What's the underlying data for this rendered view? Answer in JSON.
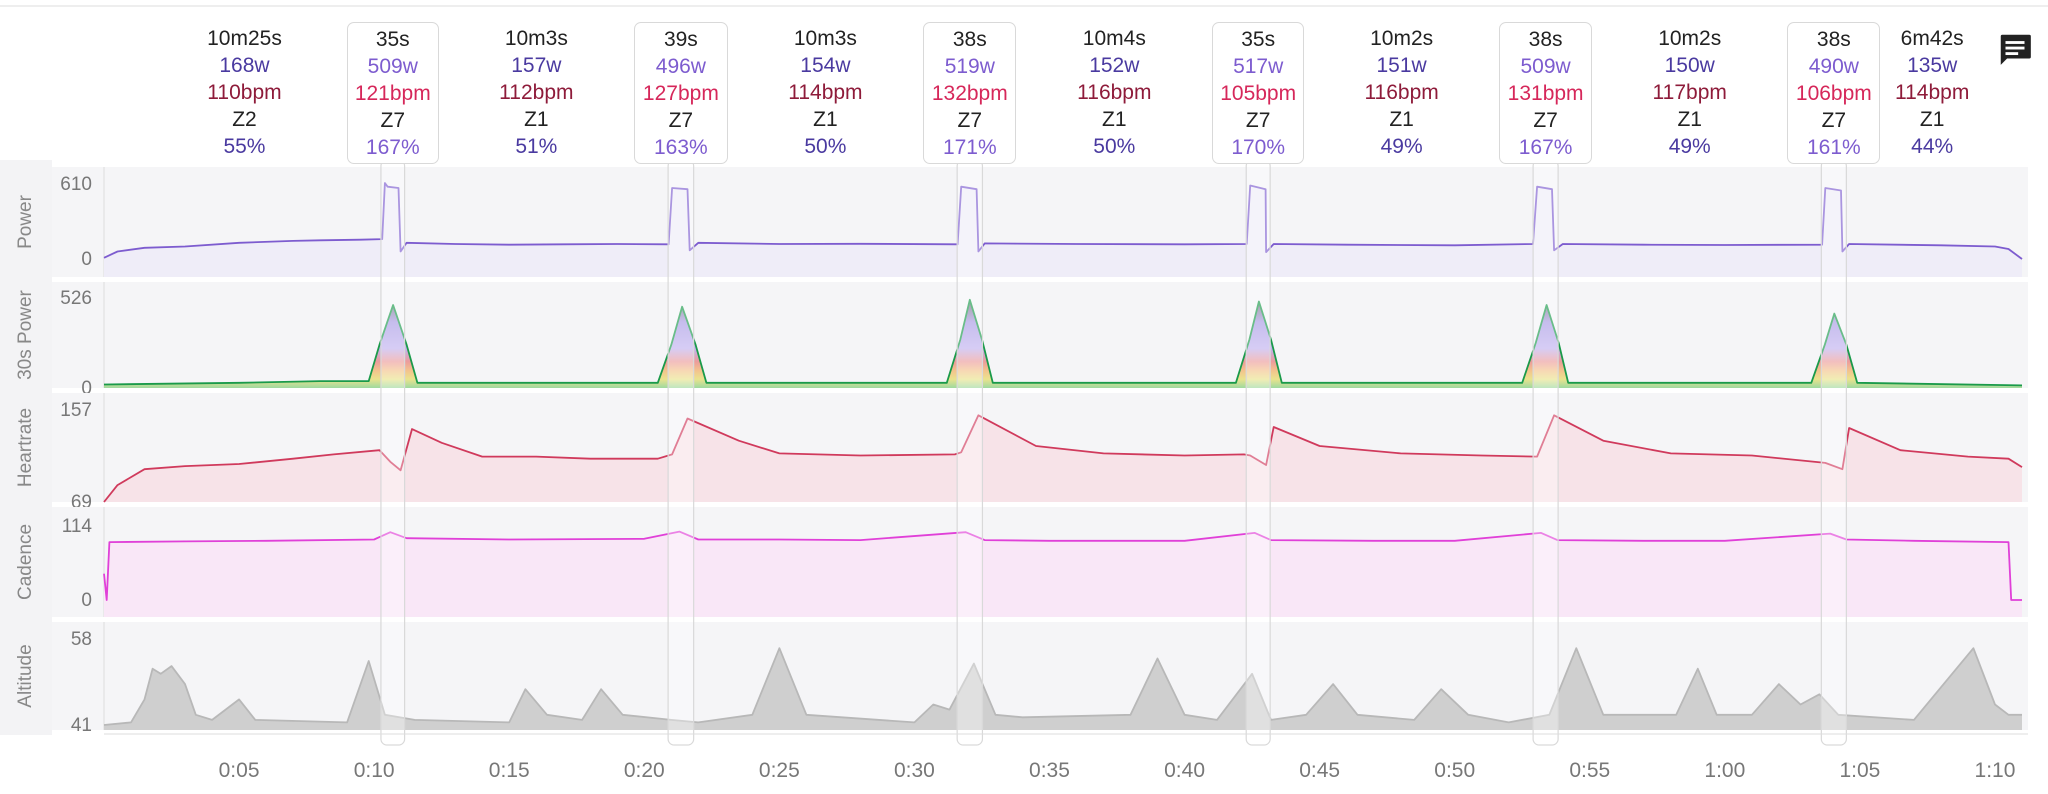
{
  "intervals": [
    {
      "duration": "10m25s",
      "power": "168w",
      "heartrate": "110bpm",
      "zone": "Z2",
      "percent": "55%",
      "work": false
    },
    {
      "duration": "35s",
      "power": "509w",
      "heartrate": "121bpm",
      "zone": "Z7",
      "percent": "167%",
      "work": true
    },
    {
      "duration": "10m3s",
      "power": "157w",
      "heartrate": "112bpm",
      "zone": "Z1",
      "percent": "51%",
      "work": false
    },
    {
      "duration": "39s",
      "power": "496w",
      "heartrate": "127bpm",
      "zone": "Z7",
      "percent": "163%",
      "work": true
    },
    {
      "duration": "10m3s",
      "power": "154w",
      "heartrate": "114bpm",
      "zone": "Z1",
      "percent": "50%",
      "work": false
    },
    {
      "duration": "38s",
      "power": "519w",
      "heartrate": "132bpm",
      "zone": "Z7",
      "percent": "171%",
      "work": true
    },
    {
      "duration": "10m4s",
      "power": "152w",
      "heartrate": "116bpm",
      "zone": "Z1",
      "percent": "50%",
      "work": false
    },
    {
      "duration": "35s",
      "power": "517w",
      "heartrate": "105bpm",
      "zone": "Z7",
      "percent": "170%",
      "work": true
    },
    {
      "duration": "10m2s",
      "power": "151w",
      "heartrate": "116bpm",
      "zone": "Z1",
      "percent": "49%",
      "work": false
    },
    {
      "duration": "38s",
      "power": "509w",
      "heartrate": "131bpm",
      "zone": "Z7",
      "percent": "167%",
      "work": true
    },
    {
      "duration": "10m2s",
      "power": "150w",
      "heartrate": "117bpm",
      "zone": "Z1",
      "percent": "49%",
      "work": false
    },
    {
      "duration": "38s",
      "power": "490w",
      "heartrate": "106bpm",
      "zone": "Z7",
      "percent": "161%",
      "work": true
    },
    {
      "duration": "6m42s",
      "power": "135w",
      "heartrate": "114bpm",
      "zone": "Z1",
      "percent": "44%",
      "work": false
    }
  ],
  "comment_icon": "comment-icon",
  "colors": {
    "power": "#7d5ccf",
    "power_30s": "#1a9a4a",
    "heartrate": "#d03a5c",
    "cadence": "#e040d8",
    "altitude": "#cfcfcf",
    "panel_bg": "#f5f5f7"
  },
  "chart_data": {
    "type": "line",
    "x": {
      "unit": "minutes",
      "range": [
        0,
        71
      ],
      "tick_labels": [
        "0:05",
        "0:10",
        "0:15",
        "0:20",
        "0:25",
        "0:30",
        "0:35",
        "0:40",
        "0:45",
        "0:50",
        "0:55",
        "1:00",
        "1:05",
        "1:10"
      ],
      "tick_values": [
        5,
        10,
        15,
        20,
        25,
        30,
        35,
        40,
        45,
        50,
        55,
        60,
        65,
        70
      ]
    },
    "work_intervals": [
      {
        "start": 10.4,
        "end": 10.98
      },
      {
        "start": 21.03,
        "end": 21.68
      },
      {
        "start": 31.73,
        "end": 32.37
      },
      {
        "start": 42.43,
        "end": 43.02
      },
      {
        "start": 53.05,
        "end": 53.68
      },
      {
        "start": 63.72,
        "end": 64.35
      }
    ],
    "series": [
      {
        "name": "Power",
        "ylabel": "Power",
        "ylim": [
          0,
          610
        ],
        "tick_labels": [
          "610",
          "0"
        ],
        "points": [
          [
            0,
            10
          ],
          [
            0.5,
            60
          ],
          [
            1.5,
            90
          ],
          [
            3,
            100
          ],
          [
            5,
            130
          ],
          [
            7,
            145
          ],
          [
            8,
            150
          ],
          [
            9.5,
            155
          ],
          [
            10.3,
            160
          ],
          [
            10.4,
            610
          ],
          [
            10.5,
            580
          ],
          [
            10.9,
            570
          ],
          [
            10.98,
            60
          ],
          [
            11.2,
            130
          ],
          [
            13,
            120
          ],
          [
            15,
            115
          ],
          [
            17,
            118
          ],
          [
            19,
            120
          ],
          [
            20.9,
            118
          ],
          [
            21.03,
            570
          ],
          [
            21.6,
            560
          ],
          [
            21.68,
            70
          ],
          [
            22,
            130
          ],
          [
            25,
            120
          ],
          [
            28,
            122
          ],
          [
            31.6,
            118
          ],
          [
            31.73,
            580
          ],
          [
            32.3,
            560
          ],
          [
            32.37,
            60
          ],
          [
            32.6,
            125
          ],
          [
            36,
            120
          ],
          [
            40,
            118
          ],
          [
            42.3,
            120
          ],
          [
            42.43,
            590
          ],
          [
            43,
            560
          ],
          [
            43.02,
            55
          ],
          [
            43.3,
            120
          ],
          [
            46,
            115
          ],
          [
            50,
            110
          ],
          [
            52.9,
            120
          ],
          [
            53.05,
            580
          ],
          [
            53.6,
            560
          ],
          [
            53.68,
            70
          ],
          [
            54,
            120
          ],
          [
            57,
            115
          ],
          [
            60,
            112
          ],
          [
            63.6,
            115
          ],
          [
            63.72,
            570
          ],
          [
            64.3,
            550
          ],
          [
            64.35,
            60
          ],
          [
            64.6,
            120
          ],
          [
            68,
            110
          ],
          [
            70,
            100
          ],
          [
            70.5,
            80
          ],
          [
            71,
            0
          ]
        ]
      },
      {
        "name": "30s Power",
        "ylabel": "30s Power",
        "ylim": [
          0,
          526
        ],
        "tick_labels": [
          "526",
          "0"
        ],
        "points": [
          [
            0,
            20
          ],
          [
            5,
            30
          ],
          [
            8,
            40
          ],
          [
            9.8,
            40
          ],
          [
            10.2,
            250
          ],
          [
            10.7,
            480
          ],
          [
            11.2,
            250
          ],
          [
            11.6,
            30
          ],
          [
            20.5,
            30
          ],
          [
            21,
            250
          ],
          [
            21.4,
            470
          ],
          [
            21.9,
            250
          ],
          [
            22.3,
            30
          ],
          [
            31.2,
            30
          ],
          [
            31.7,
            280
          ],
          [
            32.05,
            510
          ],
          [
            32.5,
            280
          ],
          [
            32.9,
            30
          ],
          [
            41.9,
            30
          ],
          [
            42.4,
            280
          ],
          [
            42.75,
            500
          ],
          [
            43.2,
            280
          ],
          [
            43.6,
            30
          ],
          [
            52.5,
            30
          ],
          [
            53,
            260
          ],
          [
            53.4,
            480
          ],
          [
            53.85,
            260
          ],
          [
            54.2,
            30
          ],
          [
            63.2,
            30
          ],
          [
            63.7,
            250
          ],
          [
            64.05,
            430
          ],
          [
            64.5,
            250
          ],
          [
            64.9,
            30
          ],
          [
            71,
            15
          ]
        ]
      },
      {
        "name": "Heartrate",
        "ylabel": "Heartrate",
        "ylim": [
          69,
          157
        ],
        "tick_labels": [
          "157",
          "69"
        ],
        "points": [
          [
            0,
            69
          ],
          [
            0.5,
            85
          ],
          [
            1.5,
            100
          ],
          [
            3,
            103
          ],
          [
            5,
            105
          ],
          [
            7,
            110
          ],
          [
            8.5,
            114
          ],
          [
            10.2,
            118
          ],
          [
            10.6,
            107
          ],
          [
            10.98,
            99
          ],
          [
            11.4,
            138
          ],
          [
            12.5,
            125
          ],
          [
            14,
            112
          ],
          [
            16,
            112
          ],
          [
            18,
            110
          ],
          [
            20.5,
            110
          ],
          [
            21.03,
            114
          ],
          [
            21.6,
            148
          ],
          [
            23.5,
            127
          ],
          [
            25,
            115
          ],
          [
            28,
            113
          ],
          [
            31.5,
            114
          ],
          [
            31.73,
            116
          ],
          [
            32.37,
            151
          ],
          [
            34.5,
            122
          ],
          [
            37,
            115
          ],
          [
            40,
            113
          ],
          [
            42.2,
            114
          ],
          [
            42.43,
            113
          ],
          [
            43.02,
            104
          ],
          [
            43.3,
            140
          ],
          [
            45,
            122
          ],
          [
            48,
            115
          ],
          [
            51,
            113
          ],
          [
            53.05,
            112
          ],
          [
            53.68,
            151
          ],
          [
            55.5,
            127
          ],
          [
            58,
            115
          ],
          [
            61,
            113
          ],
          [
            63.72,
            106
          ],
          [
            64.35,
            100
          ],
          [
            64.6,
            139
          ],
          [
            66.5,
            118
          ],
          [
            69,
            112
          ],
          [
            70.5,
            110
          ],
          [
            71,
            102
          ]
        ]
      },
      {
        "name": "Cadence",
        "ylabel": "Cadence",
        "ylim": [
          0,
          114
        ],
        "tick_labels": [
          "114",
          "0"
        ],
        "points": [
          [
            0,
            40
          ],
          [
            0.1,
            0
          ],
          [
            0.2,
            88
          ],
          [
            3,
            89
          ],
          [
            6,
            90
          ],
          [
            10,
            92
          ],
          [
            10.6,
            103
          ],
          [
            11.2,
            94
          ],
          [
            15,
            92
          ],
          [
            20,
            93
          ],
          [
            21.3,
            104
          ],
          [
            22,
            92
          ],
          [
            25,
            92
          ],
          [
            28,
            91
          ],
          [
            31.9,
            103
          ],
          [
            32.6,
            91
          ],
          [
            35,
            90
          ],
          [
            40,
            90
          ],
          [
            42.6,
            102
          ],
          [
            43.2,
            91
          ],
          [
            47,
            90
          ],
          [
            50,
            90
          ],
          [
            53.2,
            102
          ],
          [
            53.8,
            91
          ],
          [
            57,
            90
          ],
          [
            60,
            90
          ],
          [
            63.9,
            101
          ],
          [
            64.5,
            92
          ],
          [
            67,
            90
          ],
          [
            70.5,
            88
          ],
          [
            70.6,
            0
          ],
          [
            71,
            0
          ]
        ]
      },
      {
        "name": "Altitude",
        "ylabel": "Altitude",
        "ylim": [
          41,
          58
        ],
        "tick_labels": [
          "58",
          "41"
        ],
        "points": [
          [
            0,
            41
          ],
          [
            1,
            41.5
          ],
          [
            1.5,
            46
          ],
          [
            1.8,
            52
          ],
          [
            2.1,
            51
          ],
          [
            2.5,
            52.5
          ],
          [
            3,
            49
          ],
          [
            3.4,
            43
          ],
          [
            4,
            42
          ],
          [
            5,
            46
          ],
          [
            5.6,
            42
          ],
          [
            9,
            41.5
          ],
          [
            9.8,
            53.5
          ],
          [
            10.4,
            43
          ],
          [
            11.5,
            42
          ],
          [
            15,
            41.5
          ],
          [
            15.6,
            48
          ],
          [
            16.4,
            43
          ],
          [
            17.7,
            42
          ],
          [
            18.4,
            48
          ],
          [
            19.2,
            43
          ],
          [
            21,
            42
          ],
          [
            22,
            41.5
          ],
          [
            24,
            43
          ],
          [
            25,
            56
          ],
          [
            26,
            43
          ],
          [
            30,
            41.5
          ],
          [
            30.7,
            45
          ],
          [
            31.3,
            44
          ],
          [
            32.2,
            53
          ],
          [
            33,
            43
          ],
          [
            34,
            42.5
          ],
          [
            38,
            43
          ],
          [
            39,
            54
          ],
          [
            40,
            43
          ],
          [
            41.2,
            42
          ],
          [
            42.5,
            51
          ],
          [
            43.2,
            42
          ],
          [
            44.5,
            43
          ],
          [
            45.5,
            49
          ],
          [
            46.4,
            43
          ],
          [
            48.5,
            42
          ],
          [
            49.5,
            48
          ],
          [
            50.5,
            43
          ],
          [
            52,
            41.5
          ],
          [
            53.5,
            43
          ],
          [
            54.5,
            56
          ],
          [
            55.5,
            43
          ],
          [
            58.2,
            43
          ],
          [
            59,
            52
          ],
          [
            59.7,
            43
          ],
          [
            61,
            43
          ],
          [
            62,
            49
          ],
          [
            62.8,
            45
          ],
          [
            63.5,
            47
          ],
          [
            64.2,
            43
          ],
          [
            67,
            42
          ],
          [
            69.2,
            56
          ],
          [
            70,
            45
          ],
          [
            70.5,
            43
          ],
          [
            71,
            43
          ]
        ]
      }
    ]
  }
}
